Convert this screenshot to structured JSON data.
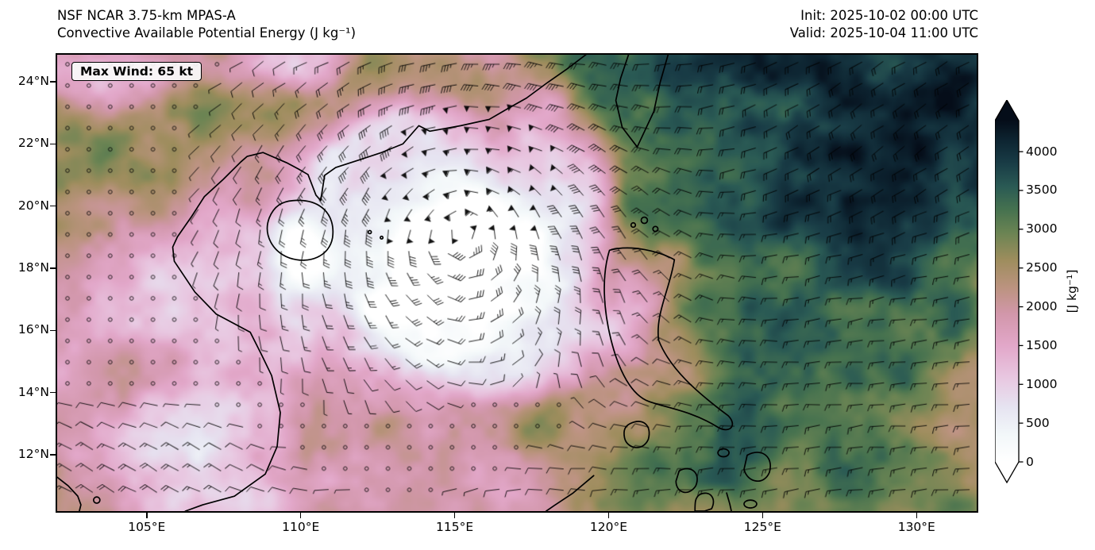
{
  "header": {
    "model_line": "NSF NCAR 3.75-km MPAS-A",
    "variable_line": "Convective Available Potential Energy (J kg⁻¹)",
    "init_line": "Init: 2025-10-02 00:00 UTC",
    "valid_line": "Valid: 2025-10-04 11:00 UTC"
  },
  "map_overlay": {
    "max_wind_label": "Max Wind: 65 kt"
  },
  "chart_data": {
    "type": "heatmap",
    "title": "Convective Available Potential Energy (J kg⁻¹)",
    "model": "NSF NCAR 3.75-km MPAS-A",
    "init_time": "2025-10-02 00:00 UTC",
    "valid_time": "2025-10-04 11:00 UTC",
    "annotations": [
      {
        "text": "Max Wind: 65 kt",
        "position": "top-left"
      }
    ],
    "x_axis": {
      "ticks": [
        "105°E",
        "110°E",
        "115°E",
        "120°E",
        "125°E",
        "130°E"
      ],
      "tick_values": [
        105,
        110,
        115,
        120,
        125,
        130
      ],
      "range_deg_east": [
        102.0,
        132.0
      ]
    },
    "y_axis": {
      "ticks": [
        "12°N",
        "14°N",
        "16°N",
        "18°N",
        "20°N",
        "22°N",
        "24°N"
      ],
      "tick_values": [
        12,
        14,
        16,
        18,
        20,
        22,
        24
      ],
      "range_deg_north": [
        10.1,
        24.9
      ]
    },
    "colorbar": {
      "label": "[J kg⁻¹]",
      "units": "J kg⁻¹",
      "tick_values": [
        0,
        500,
        1000,
        1500,
        2000,
        2500,
        3000,
        3500,
        4000
      ],
      "extend": "both",
      "stops": [
        {
          "value": 0,
          "color": "#ffffff"
        },
        {
          "value": 350,
          "color": "#f2f7f9"
        },
        {
          "value": 700,
          "color": "#e6e4f1"
        },
        {
          "value": 1100,
          "color": "#e8c6e0"
        },
        {
          "value": 1500,
          "color": "#e2a7c9"
        },
        {
          "value": 1900,
          "color": "#d297ab"
        },
        {
          "value": 2250,
          "color": "#bb937f"
        },
        {
          "value": 2600,
          "color": "#9e8d5d"
        },
        {
          "value": 2950,
          "color": "#6b8453"
        },
        {
          "value": 3250,
          "color": "#46724f"
        },
        {
          "value": 3550,
          "color": "#2a5a54"
        },
        {
          "value": 3850,
          "color": "#193c46"
        },
        {
          "value": 4150,
          "color": "#0d2431"
        },
        {
          "value": 4400,
          "color": "#050d19"
        }
      ]
    },
    "overlays": [
      "wind barbs (kt)",
      "calm-wind circles",
      "coastlines"
    ],
    "field_units": "J kg⁻¹"
  },
  "colors": {
    "background": "#ffffff",
    "axis": "#000000",
    "barbs": "#000000"
  }
}
